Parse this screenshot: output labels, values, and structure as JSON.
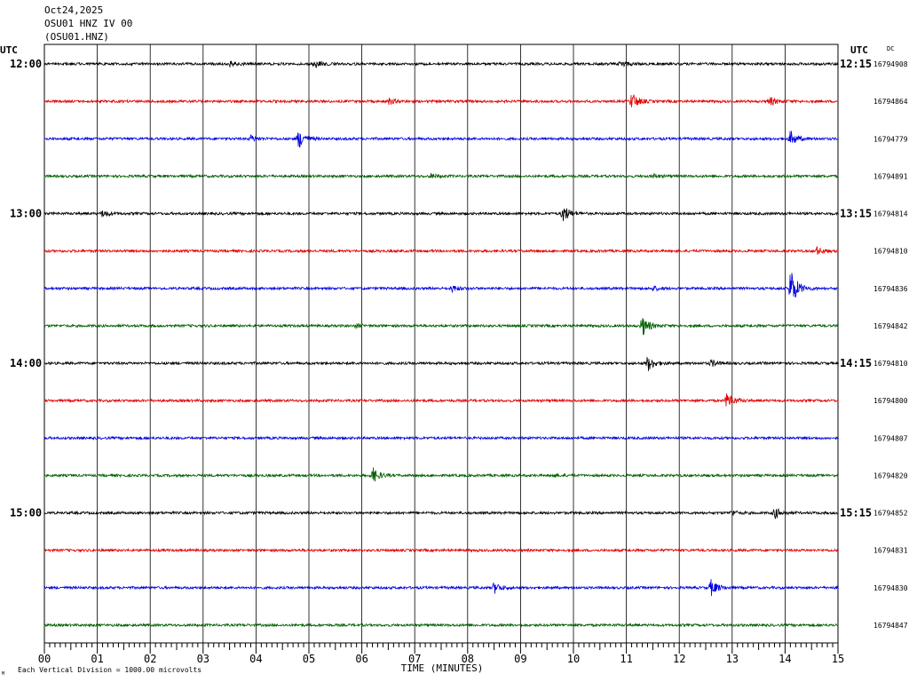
{
  "header": {
    "date": "Oct24,2025",
    "station": "OSU01 HNZ IV 00",
    "channel": "(OSU01.HNZ)"
  },
  "labels": {
    "utc_left": "UTC",
    "utc_right": "UTC",
    "dc": "DC",
    "footer_left": "Each Vertical Division = 1000.00 microvolts",
    "footer_mark": "M"
  },
  "chart_data": {
    "type": "line",
    "title": "",
    "xlabel": "TIME (MINUTES)",
    "ylabel": "",
    "xlim": [
      0,
      15
    ],
    "x_ticks": [
      "00",
      "01",
      "02",
      "03",
      "04",
      "05",
      "06",
      "07",
      "08",
      "09",
      "10",
      "11",
      "12",
      "13",
      "14",
      "15"
    ],
    "grid": true,
    "trace_colors": [
      "#000000",
      "#e00000",
      "#0000e0",
      "#006000"
    ],
    "left_time_labels": [
      "12:00",
      "",
      "",
      "",
      "13:00",
      "",
      "",
      "",
      "14:00",
      "",
      "",
      "",
      "15:00",
      "",
      "",
      ""
    ],
    "right_time_labels": [
      "12:15",
      "",
      "",
      "",
      "13:15",
      "",
      "",
      "",
      "14:15",
      "",
      "",
      "",
      "15:15",
      "",
      "",
      ""
    ],
    "right_values": [
      "16794908",
      "16794864",
      "16794779",
      "16794891",
      "16794814",
      "16794810",
      "16794836",
      "16794842",
      "16794810",
      "16794800",
      "16794807",
      "16794820",
      "16794852",
      "16794831",
      "16794830",
      "16794847"
    ],
    "events": [
      [
        {
          "t": 3.5,
          "amp": 0.25
        },
        {
          "t": 5.1,
          "amp": 0.3
        },
        {
          "t": 10.9,
          "amp": 0.3
        }
      ],
      [
        {
          "t": 11.1,
          "amp": 0.8
        },
        {
          "t": 6.5,
          "amp": 0.3
        },
        {
          "t": 13.7,
          "amp": 0.4
        }
      ],
      [
        {
          "t": 4.8,
          "amp": 0.9
        },
        {
          "t": 3.9,
          "amp": 0.3
        },
        {
          "t": 14.1,
          "amp": 0.7
        }
      ],
      [
        {
          "t": 7.3,
          "amp": 0.2
        },
        {
          "t": 11.5,
          "amp": 0.2
        }
      ],
      [
        {
          "t": 1.1,
          "amp": 0.3
        },
        {
          "t": 9.8,
          "amp": 0.8
        }
      ],
      [
        {
          "t": 14.6,
          "amp": 0.35
        }
      ],
      [
        {
          "t": 14.1,
          "amp": 1.9
        },
        {
          "t": 7.7,
          "amp": 0.3
        },
        {
          "t": 11.5,
          "amp": 0.2
        }
      ],
      [
        {
          "t": 11.3,
          "amp": 0.9
        },
        {
          "t": 5.9,
          "amp": 0.15
        }
      ],
      [
        {
          "t": 11.4,
          "amp": 0.7
        },
        {
          "t": 12.6,
          "amp": 0.3
        }
      ],
      [
        {
          "t": 12.9,
          "amp": 0.8
        }
      ],
      [],
      [
        {
          "t": 6.2,
          "amp": 0.7
        },
        {
          "t": 9.6,
          "amp": 0.15
        }
      ],
      [
        {
          "t": 13.8,
          "amp": 0.5
        },
        {
          "t": 13.0,
          "amp": 0.2
        }
      ],
      [],
      [
        {
          "t": 12.6,
          "amp": 0.7
        },
        {
          "t": 8.5,
          "amp": 0.5
        }
      ],
      []
    ]
  }
}
